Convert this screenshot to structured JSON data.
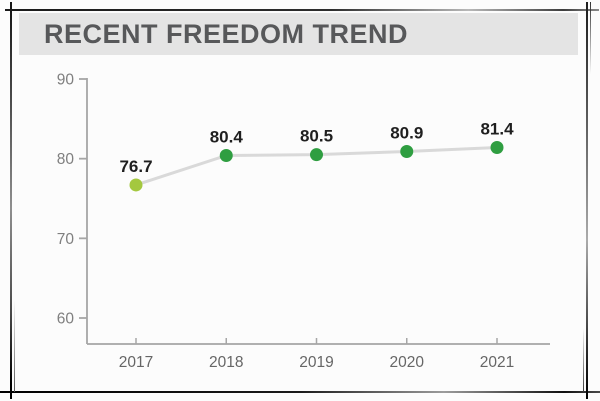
{
  "header": {
    "title": "RECENT FREEDOM TREND"
  },
  "chart_data": {
    "type": "line",
    "title": "RECENT FREEDOM TREND",
    "categories": [
      "2017",
      "2018",
      "2019",
      "2020",
      "2021"
    ],
    "values": [
      76.7,
      80.4,
      80.5,
      80.9,
      81.4
    ],
    "point_labels": [
      "76.7",
      "80.4",
      "80.5",
      "80.9",
      "81.4"
    ],
    "y_ticks": [
      90,
      80,
      70,
      60
    ],
    "ylim": [
      60,
      90
    ],
    "xlabel": "",
    "ylabel": "",
    "grid": false,
    "legend": false,
    "point_colors": [
      "#a4c83f",
      "#2f9e41",
      "#2f9e41",
      "#2f9e41",
      "#2f9e41"
    ],
    "colors": {
      "first_point": "#a4c83f",
      "point": "#2f9e41",
      "line": "#d9d9d9",
      "axis": "#a6a6a6",
      "y_tick_label": "#7f7f7f",
      "x_tick_label": "#666666",
      "value_label": "#1f1f1f",
      "header_bg": "#e4e4e4",
      "header_text": "#57585a"
    }
  }
}
